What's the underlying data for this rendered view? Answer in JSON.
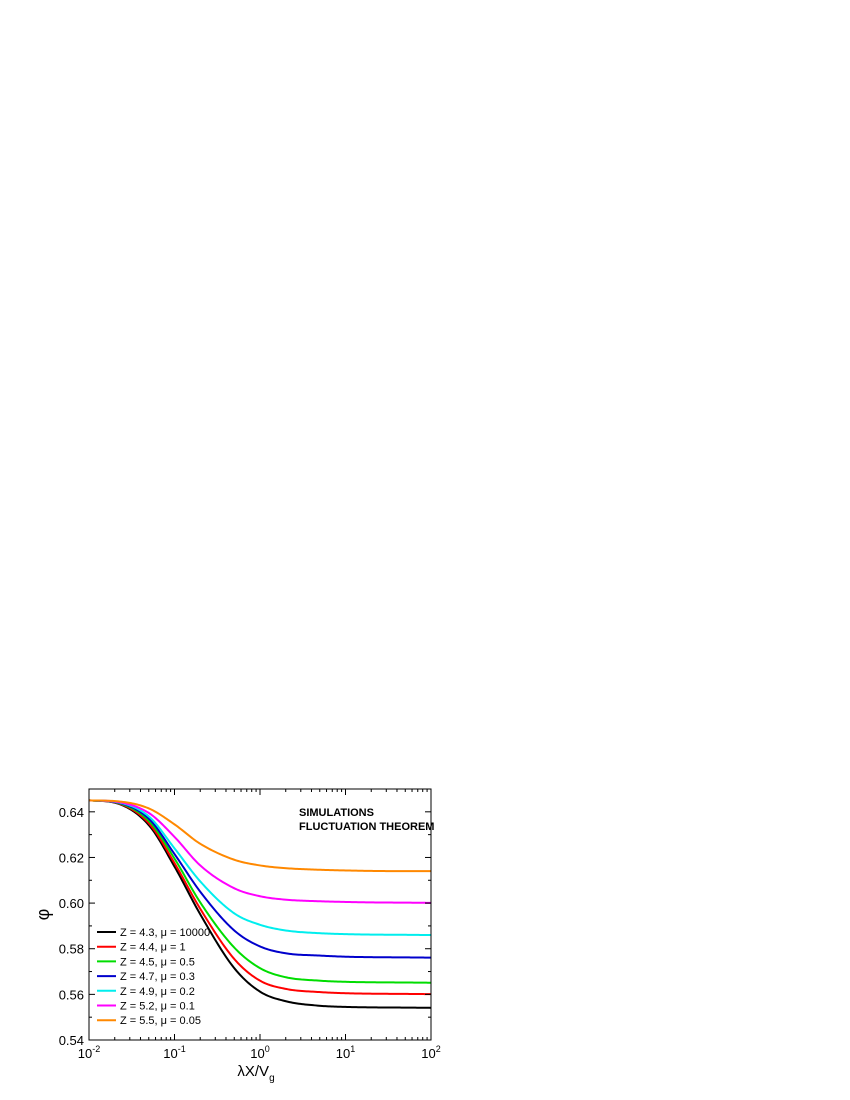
{
  "chart_data": {
    "type": "line",
    "xscale": "log",
    "xlim": [
      0.01,
      100
    ],
    "ylim": [
      0.54,
      0.65
    ],
    "xtick_values": [
      0.01,
      0.1,
      1,
      10,
      100
    ],
    "xtick_labels": [
      {
        "base": "10",
        "exp": "-2"
      },
      {
        "base": "10",
        "exp": "-1"
      },
      {
        "base": "10",
        "exp": "0"
      },
      {
        "base": "10",
        "exp": "1"
      },
      {
        "base": "10",
        "exp": "2"
      }
    ],
    "ytick_values": [
      0.54,
      0.56,
      0.58,
      0.6,
      0.62,
      0.64
    ],
    "ytick_labels": [
      "0.54",
      "0.56",
      "0.58",
      "0.60",
      "0.62",
      "0.64"
    ],
    "xlabel": {
      "main": "λX/V",
      "sub": "g"
    },
    "ylabel": "φ",
    "annotations": [
      "SIMULATIONS",
      "FLUCTUATION THEOREM"
    ],
    "legend_position": "bottom-left",
    "grid": false,
    "series": [
      {
        "name": "Z = 4.3, μ = 10000",
        "color": "#000000",
        "x": [
          0.01,
          0.02,
          0.05,
          0.1,
          0.2,
          0.5,
          1,
          2,
          5,
          10,
          20,
          50,
          100
        ],
        "y": [
          0.645,
          0.644,
          0.6342,
          0.616,
          0.5951,
          0.5715,
          0.5612,
          0.557,
          0.555,
          0.5545,
          0.5543,
          0.5542,
          0.5541
        ]
      },
      {
        "name": "Z = 4.4, μ = 1",
        "color": "#ff0000",
        "x": [
          0.01,
          0.02,
          0.05,
          0.1,
          0.2,
          0.5,
          1,
          2,
          5,
          10,
          20,
          50,
          100
        ],
        "y": [
          0.645,
          0.6441,
          0.635,
          0.6175,
          0.5975,
          0.5755,
          0.566,
          0.5624,
          0.561,
          0.5605,
          0.5603,
          0.5602,
          0.5601
        ]
      },
      {
        "name": "Z = 4.5, μ = 0.5",
        "color": "#00dd00",
        "x": [
          0.01,
          0.02,
          0.05,
          0.1,
          0.2,
          0.5,
          1,
          2,
          5,
          10,
          20,
          50,
          100
        ],
        "y": [
          0.645,
          0.6442,
          0.636,
          0.6195,
          0.6003,
          0.5805,
          0.5715,
          0.5675,
          0.566,
          0.5655,
          0.5653,
          0.5652,
          0.5651
        ]
      },
      {
        "name": "Z = 4.7, μ = 0.3",
        "color": "#0000cc",
        "x": [
          0.01,
          0.02,
          0.05,
          0.1,
          0.2,
          0.5,
          1,
          2,
          5,
          10,
          20,
          50,
          100
        ],
        "y": [
          0.645,
          0.6443,
          0.637,
          0.6215,
          0.605,
          0.588,
          0.581,
          0.578,
          0.577,
          0.5765,
          0.5763,
          0.5762,
          0.5761
        ]
      },
      {
        "name": "Z = 4.9, μ = 0.2",
        "color": "#00eeee",
        "x": [
          0.01,
          0.02,
          0.05,
          0.1,
          0.2,
          0.5,
          1,
          2,
          5,
          10,
          20,
          50,
          100
        ],
        "y": [
          0.645,
          0.6444,
          0.638,
          0.624,
          0.6095,
          0.5955,
          0.5905,
          0.588,
          0.5868,
          0.5864,
          0.5862,
          0.5861,
          0.586
        ]
      },
      {
        "name": "Z = 5.2, μ = 0.1",
        "color": "#ff00ff",
        "x": [
          0.01,
          0.02,
          0.05,
          0.1,
          0.2,
          0.5,
          1,
          2,
          5,
          10,
          20,
          50,
          100
        ],
        "y": [
          0.645,
          0.6445,
          0.6395,
          0.629,
          0.6165,
          0.6065,
          0.603,
          0.6015,
          0.6008,
          0.6005,
          0.6003,
          0.6002,
          0.6001
        ]
      },
      {
        "name": "Z = 5.5, μ = 0.05",
        "color": "#ff8800",
        "x": [
          0.01,
          0.02,
          0.05,
          0.1,
          0.2,
          0.5,
          1,
          2,
          5,
          10,
          20,
          50,
          100
        ],
        "y": [
          0.645,
          0.6447,
          0.6415,
          0.6345,
          0.626,
          0.619,
          0.6165,
          0.6153,
          0.6146,
          0.6143,
          0.6141,
          0.614,
          0.614
        ]
      }
    ]
  }
}
